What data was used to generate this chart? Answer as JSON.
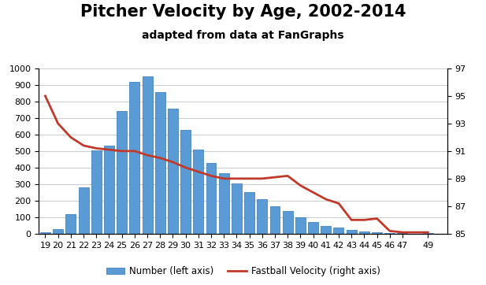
{
  "title": "Pitcher Velocity by Age, 2002-2014",
  "subtitle": "adapted from data at FanGraphs",
  "ages": [
    19,
    20,
    21,
    22,
    23,
    24,
    25,
    26,
    27,
    28,
    29,
    30,
    31,
    32,
    33,
    34,
    35,
    36,
    37,
    38,
    39,
    40,
    41,
    42,
    43,
    44,
    45,
    46,
    47,
    49
  ],
  "counts": [
    10,
    30,
    120,
    280,
    505,
    535,
    740,
    920,
    950,
    855,
    755,
    630,
    510,
    430,
    365,
    305,
    250,
    210,
    165,
    135,
    98,
    70,
    48,
    38,
    25,
    15,
    8,
    5,
    5,
    3
  ],
  "velocities": [
    95.0,
    93.0,
    92.0,
    91.4,
    91.2,
    91.1,
    91.0,
    91.0,
    90.7,
    90.5,
    90.2,
    89.8,
    89.5,
    89.2,
    89.0,
    89.0,
    89.0,
    89.0,
    89.1,
    89.2,
    88.5,
    88.0,
    87.5,
    87.2,
    86.0,
    86.0,
    86.1,
    85.2,
    85.1,
    85.1
  ],
  "bar_color": "#5b9bd5",
  "bar_edge_color": "#2e75b6",
  "line_color": "#c0392b",
  "left_ylim": [
    0,
    1000
  ],
  "right_ylim": [
    85.0,
    97.0
  ],
  "left_yticks": [
    0,
    100,
    200,
    300,
    400,
    500,
    600,
    700,
    800,
    900,
    1000
  ],
  "right_yticks": [
    85.0,
    87.0,
    89.0,
    91.0,
    93.0,
    95.0,
    97.0
  ],
  "legend_bar_label": "Number (left axis)",
  "legend_line_label": "Fastball Velocity (right axis)",
  "title_fontsize": 15,
  "subtitle_fontsize": 10,
  "tick_fontsize": 8,
  "background_color": "#ffffff",
  "xlim_left": 18.5,
  "xlim_right": 50.5
}
